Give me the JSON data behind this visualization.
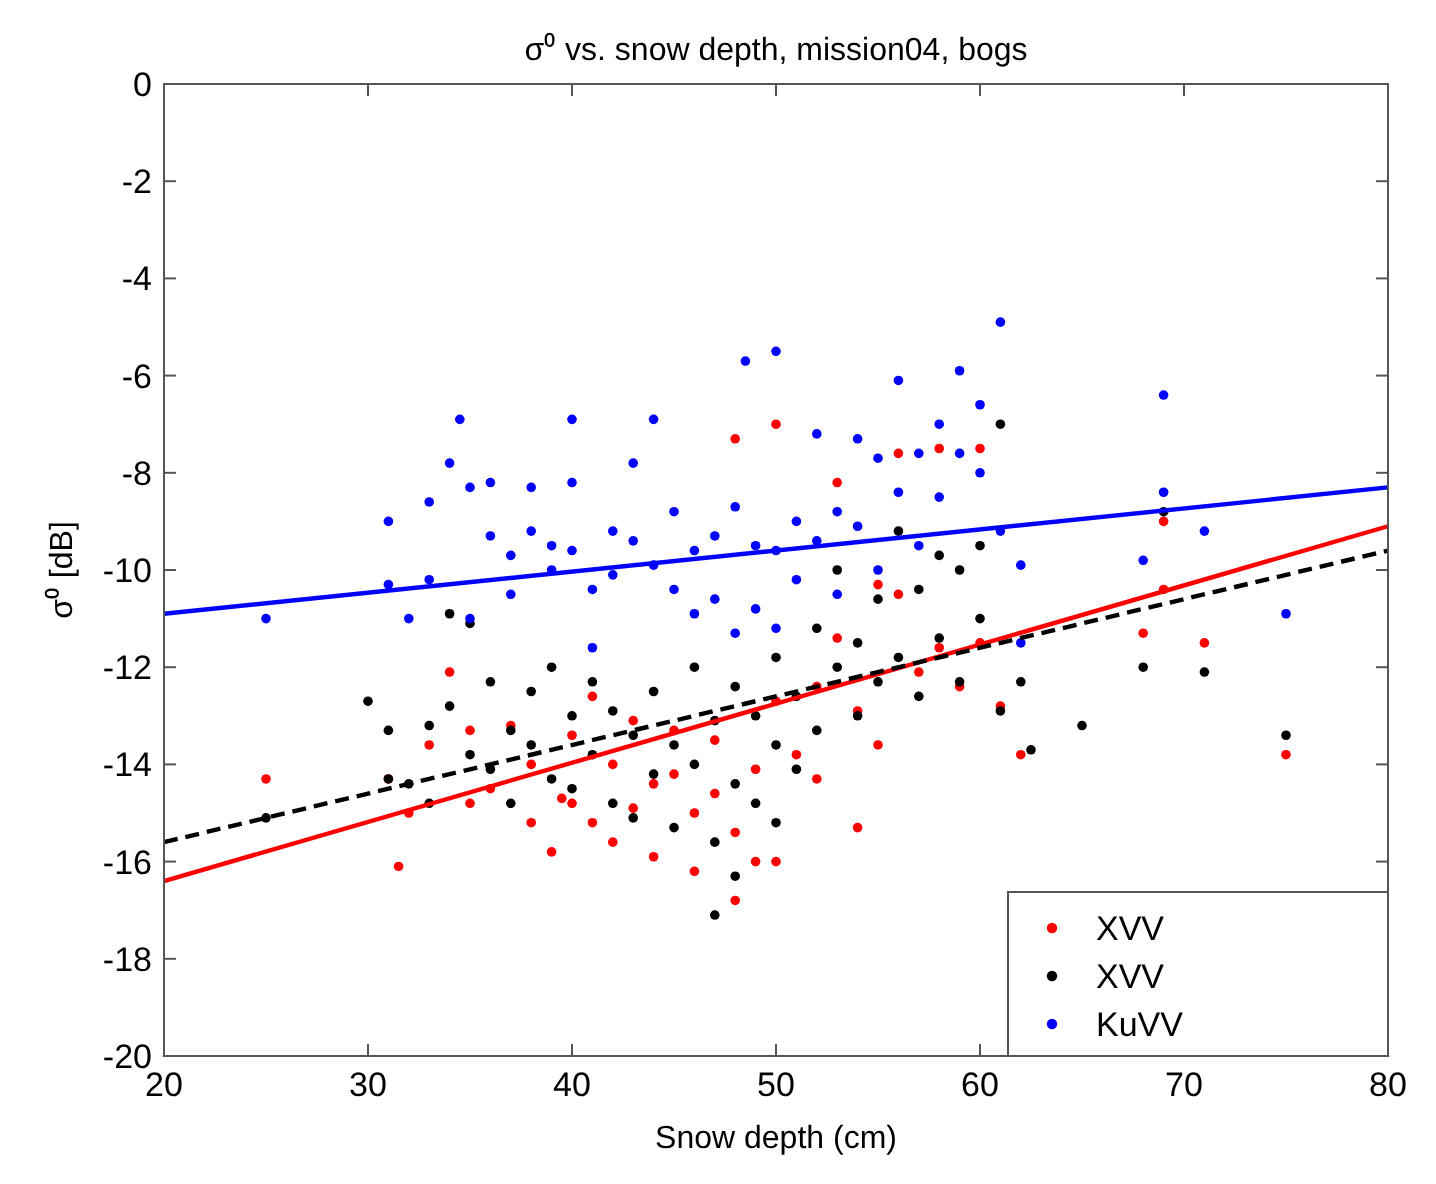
{
  "chart_data": {
    "type": "scatter",
    "title": "σ⁰ vs. snow depth, mission04, bogs",
    "xlabel": "Snow depth (cm)",
    "ylabel": "σ⁰ [dB]",
    "xlim": [
      20,
      80
    ],
    "xticks": [
      20,
      30,
      40,
      50,
      60,
      70,
      80
    ],
    "ylim": [
      -20,
      0
    ],
    "yticks": [
      -20,
      -18,
      -16,
      -14,
      -12,
      -10,
      -8,
      -6,
      -4,
      -2,
      0
    ],
    "legend": "bottom right",
    "grid": false,
    "series": [
      {
        "name": "XVV",
        "marker": "circle",
        "color": "#ff0000",
        "x": [
          25,
          31,
          31.5,
          32,
          33,
          34,
          35,
          35,
          36,
          37,
          38,
          38,
          39,
          39.5,
          40,
          40,
          41,
          41,
          42,
          42,
          43,
          43,
          44,
          44,
          45,
          45,
          46,
          46,
          47,
          47,
          48,
          48,
          48,
          49,
          49,
          50,
          50,
          50,
          51,
          52,
          52,
          53,
          53,
          54,
          54,
          55,
          55,
          56,
          56,
          57,
          58,
          58,
          59,
          60,
          60,
          61,
          62,
          68,
          69,
          69,
          71,
          75
        ],
        "values": [
          -14.3,
          -14.3,
          -16.1,
          -15.0,
          -13.6,
          -12.1,
          -13.3,
          -14.8,
          -14.5,
          -13.2,
          -14.0,
          -15.2,
          -15.8,
          -14.7,
          -13.4,
          -14.8,
          -12.6,
          -15.2,
          -14.0,
          -15.6,
          -13.1,
          -14.9,
          -14.4,
          -15.9,
          -14.2,
          -13.3,
          -15.0,
          -16.2,
          -14.6,
          -13.5,
          -16.8,
          -15.4,
          -7.3,
          -14.1,
          -16.0,
          -16.0,
          -12.7,
          -7.0,
          -13.8,
          -12.4,
          -14.3,
          -11.4,
          -8.2,
          -12.9,
          -15.3,
          -10.3,
          -13.6,
          -10.5,
          -7.6,
          -12.1,
          -11.6,
          -7.5,
          -12.4,
          -7.5,
          -11.5,
          -12.8,
          -13.8,
          -11.3,
          -10.4,
          -9.0,
          -11.5,
          -13.8
        ]
      },
      {
        "name": "XVV",
        "marker": "circle",
        "color": "#000000",
        "x": [
          25,
          30,
          31,
          31,
          32,
          33,
          33,
          34,
          34,
          35,
          35,
          36,
          36,
          37,
          37,
          38,
          38,
          39,
          39,
          40,
          40,
          41,
          41,
          42,
          42,
          43,
          43,
          44,
          44,
          45,
          45,
          46,
          46,
          47,
          47,
          47,
          48,
          48,
          48,
          49,
          49,
          50,
          50,
          50,
          51,
          51,
          52,
          52,
          53,
          53,
          54,
          54,
          55,
          55,
          56,
          56,
          57,
          57,
          58,
          58,
          59,
          59,
          60,
          60,
          61,
          61,
          62,
          62.5,
          65,
          68,
          69,
          71,
          75
        ],
        "values": [
          -15.1,
          -12.7,
          -13.3,
          -14.3,
          -14.4,
          -13.2,
          -14.8,
          -10.9,
          -12.8,
          -13.8,
          -11.1,
          -12.3,
          -14.1,
          -13.3,
          -14.8,
          -12.5,
          -13.6,
          -14.3,
          -12.0,
          -13.0,
          -14.5,
          -12.3,
          -13.8,
          -14.8,
          -12.9,
          -13.4,
          -15.1,
          -12.5,
          -14.2,
          -13.6,
          -15.3,
          -12.0,
          -14.0,
          -13.1,
          -17.1,
          -15.6,
          -12.4,
          -14.4,
          -16.3,
          -13.0,
          -14.8,
          -11.8,
          -13.6,
          -15.2,
          -12.6,
          -14.1,
          -11.2,
          -13.3,
          -12.0,
          -10.0,
          -11.5,
          -13.0,
          -10.6,
          -12.3,
          -9.2,
          -11.8,
          -10.4,
          -12.6,
          -9.7,
          -11.4,
          -10.0,
          -12.3,
          -9.5,
          -11.0,
          -7.0,
          -12.9,
          -12.3,
          -13.7,
          -13.2,
          -12.0,
          -8.8,
          -12.1,
          -13.4
        ]
      },
      {
        "name": "KuVV",
        "marker": "circle",
        "color": "#0000ff",
        "x": [
          25,
          31,
          31,
          32,
          33,
          33,
          34,
          34.5,
          35,
          35,
          36,
          36,
          37,
          37,
          38,
          38,
          39,
          39,
          40,
          40,
          40,
          41,
          41,
          42,
          42,
          43,
          43,
          44,
          44,
          45,
          45,
          46,
          46,
          47,
          47,
          48,
          48,
          48.5,
          49,
          49,
          50,
          50,
          50,
          51,
          51,
          52,
          52,
          53,
          53,
          54,
          54,
          55,
          55,
          56,
          56,
          57,
          57,
          58,
          58,
          59,
          59,
          60,
          60,
          61,
          61,
          62,
          62,
          68,
          69,
          69,
          71,
          75
        ],
        "values": [
          -11,
          -10.3,
          -9,
          -11,
          -10.2,
          -8.6,
          -7.8,
          -6.9,
          -8.3,
          -11,
          -9.3,
          -8.2,
          -9.7,
          -10.5,
          -9.2,
          -8.3,
          -10.0,
          -9.5,
          -6.9,
          -8.2,
          -9.6,
          -10.4,
          -11.6,
          -9.2,
          -10.1,
          -9.4,
          -7.8,
          -6.9,
          -9.9,
          -10.4,
          -8.8,
          -9.6,
          -10.9,
          -9.3,
          -10.6,
          -8.7,
          -11.3,
          -5.7,
          -9.5,
          -10.8,
          -9.6,
          -11.2,
          -5.5,
          -10.2,
          -9.0,
          -7.2,
          -9.4,
          -8.8,
          -10.5,
          -7.3,
          -9.1,
          -7.7,
          -10.0,
          -6.1,
          -8.4,
          -7.6,
          -9.5,
          -7.0,
          -8.5,
          -5.9,
          -7.6,
          -6.6,
          -8.0,
          -4.9,
          -9.2,
          -9.9,
          -11.5,
          -9.8,
          -6.4,
          -8.4,
          -9.2,
          -10.9
        ]
      },
      {
        "type": "line",
        "marker": "none",
        "line_style": "solid",
        "color": "#ff0000",
        "x": [
          20,
          80
        ],
        "values": [
          -16.4,
          -9.1
        ]
      },
      {
        "type": "line",
        "marker": "none",
        "line_style": "dashed",
        "color": "#000000",
        "x": [
          20,
          80
        ],
        "values": [
          -15.6,
          -9.6
        ]
      },
      {
        "type": "line",
        "marker": "none",
        "line_style": "solid",
        "color": "#0000ff",
        "x": [
          20,
          80
        ],
        "values": [
          -10.9,
          -8.3
        ]
      }
    ]
  }
}
